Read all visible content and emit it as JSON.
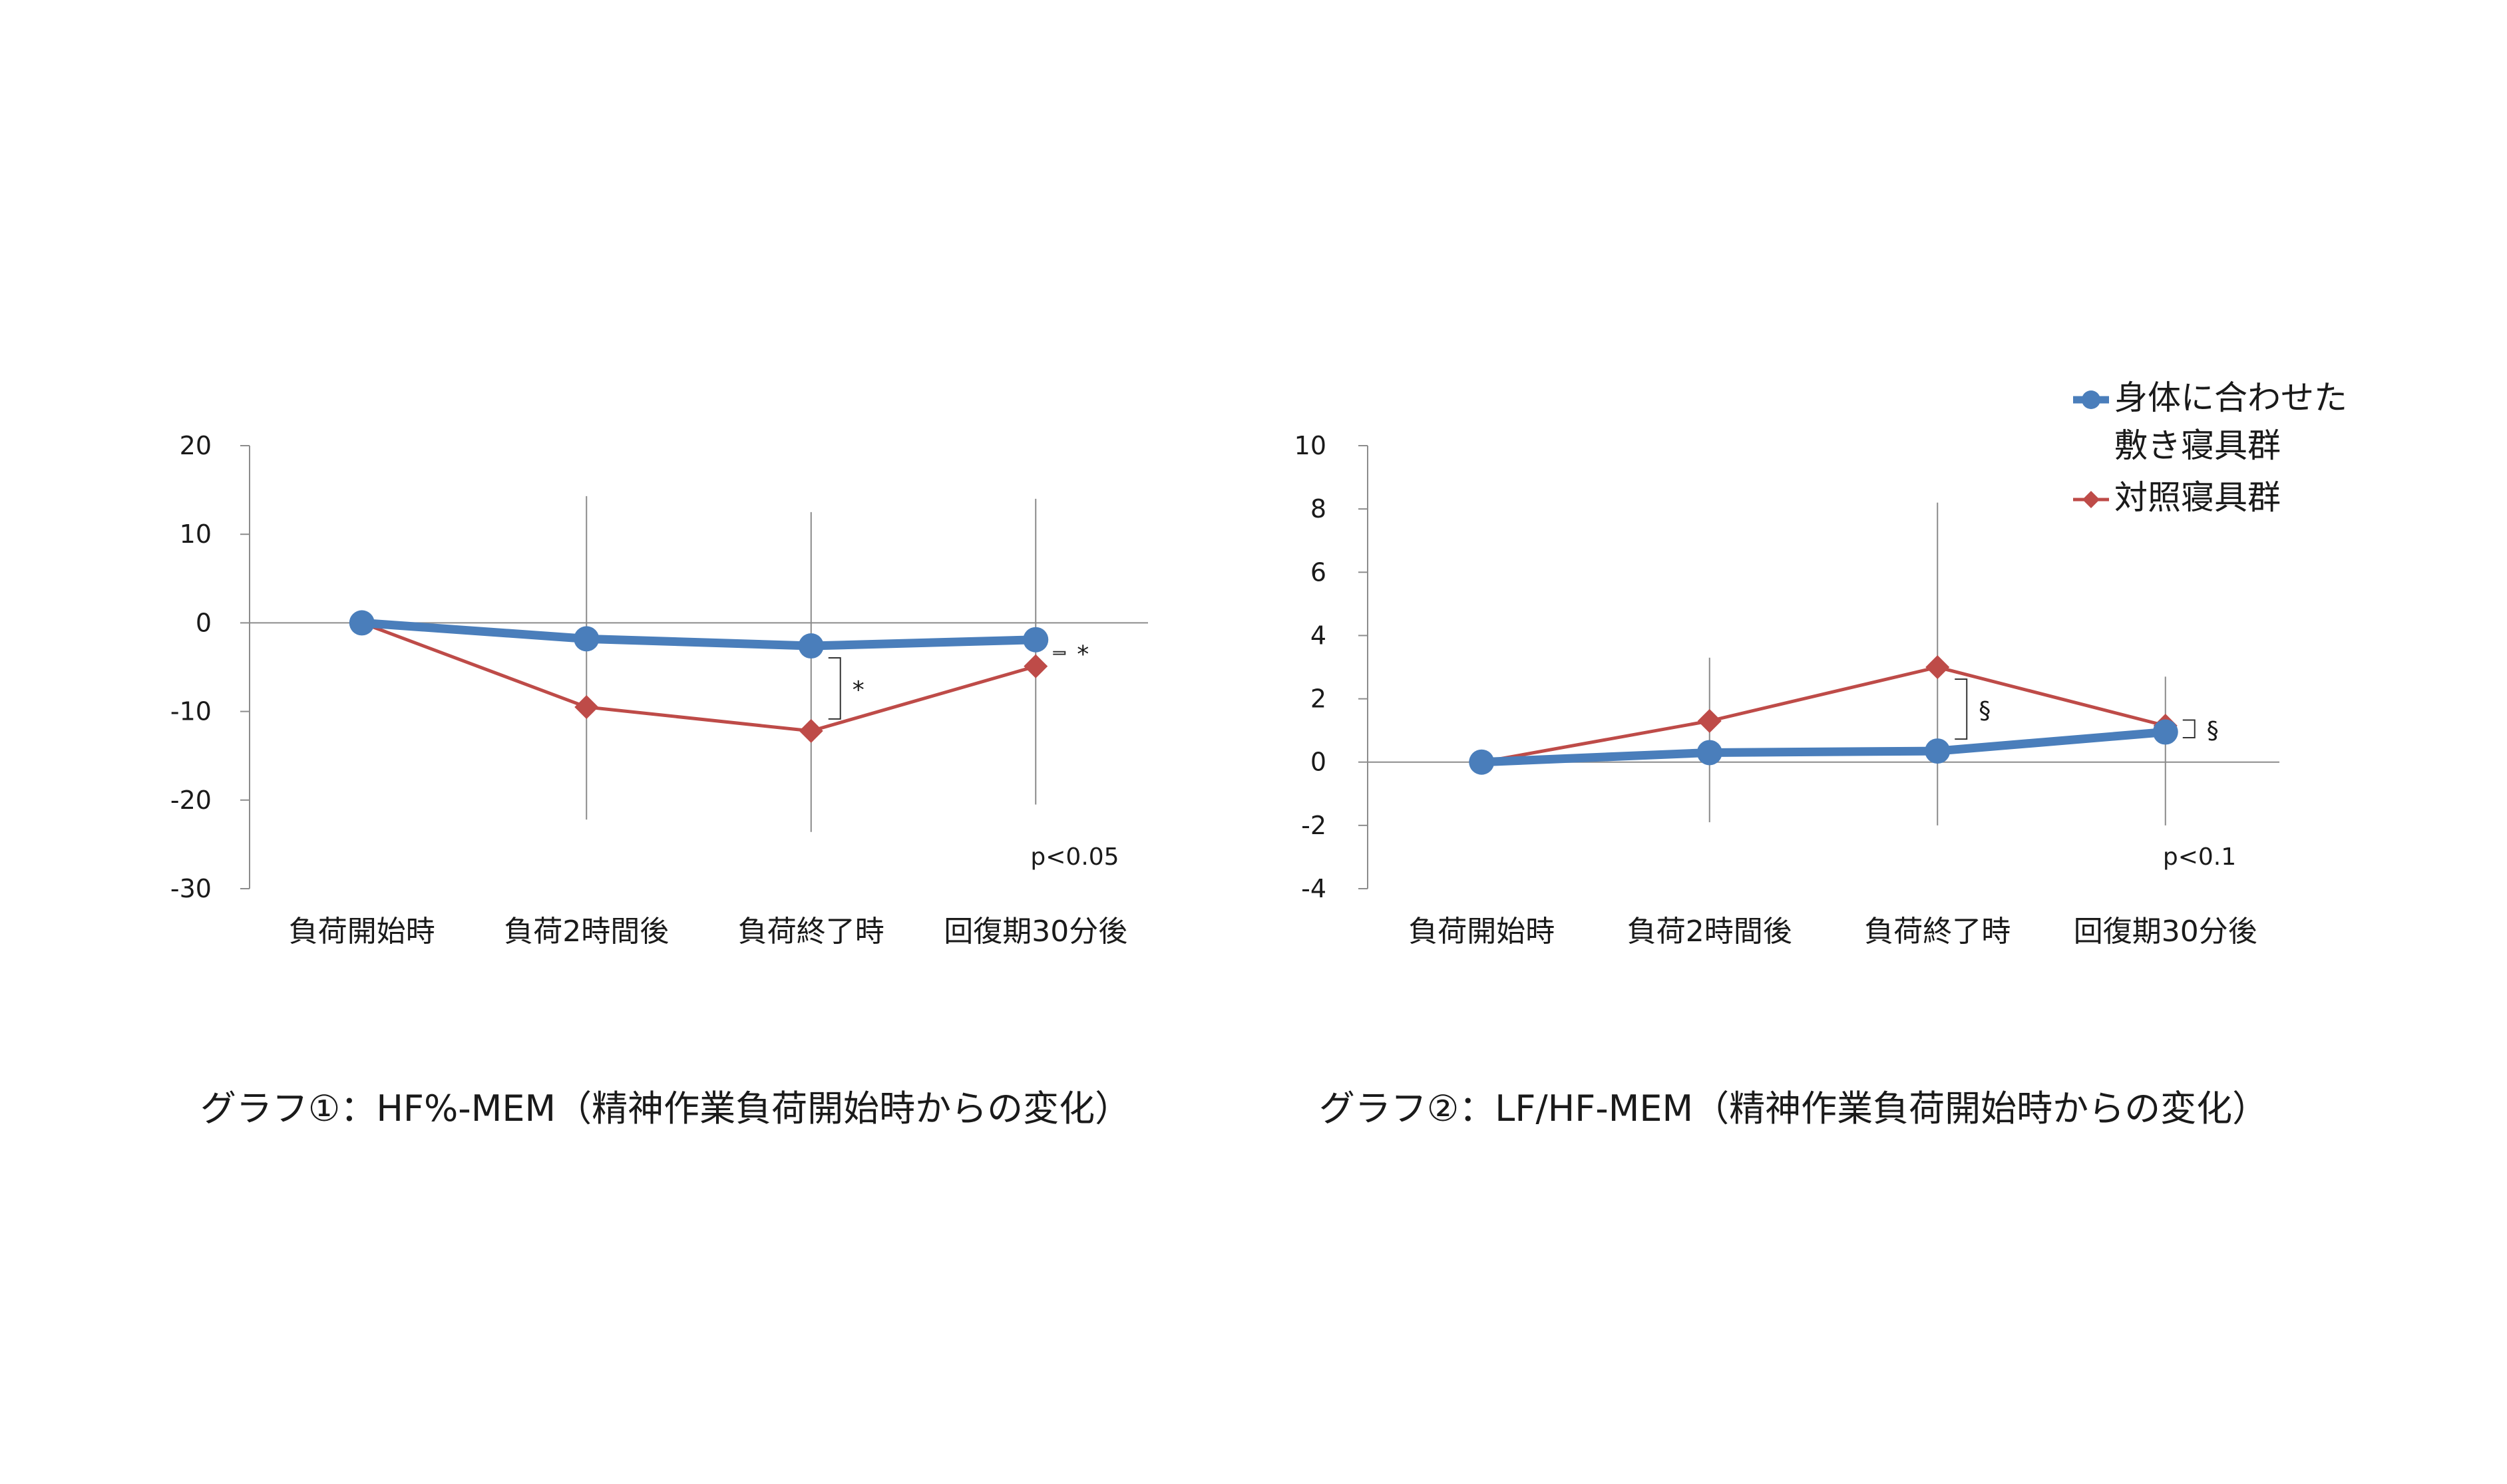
{
  "chart_data": [
    {
      "type": "line",
      "title": "",
      "xlabel": "",
      "ylabel": "",
      "caption": "グラフ①：HF%-MEM（精神作業負荷開始時からの変化）",
      "categories": [
        "負荷開始時",
        "負荷2時間後",
        "負荷終了時",
        "回復期30分後"
      ],
      "ylim": [
        -30,
        20
      ],
      "yticks": [
        20,
        10,
        0,
        -10,
        -20,
        -30
      ],
      "ytick_labels": [
        "20",
        "10",
        "0",
        "-10",
        "-20",
        "-30"
      ],
      "series": [
        {
          "key": "fitted",
          "color": "#4a7ebb",
          "marker": "circle",
          "values": [
            0,
            -1.8,
            -2.6,
            -1.9
          ],
          "err_lower": [
            null,
            null,
            null,
            null
          ],
          "err_upper": [
            null,
            null,
            null,
            null
          ]
        },
        {
          "key": "control",
          "color": "#be4b48",
          "marker": "diamond",
          "values": [
            0,
            -9.5,
            -12.2,
            -4.9
          ],
          "err_lower": [
            null,
            -22.2,
            -23.6,
            -20.5
          ],
          "err_upper": [
            null,
            14.3,
            12.5,
            14.0
          ]
        }
      ],
      "significance": [
        {
          "category_index": 2,
          "label": "*"
        },
        {
          "category_index": 3,
          "label": "*"
        }
      ],
      "note": "p<0.05"
    },
    {
      "type": "line",
      "title": "",
      "xlabel": "",
      "ylabel": "",
      "caption": "グラフ②：LF/HF-MEM（精神作業負荷開始時からの変化）",
      "categories": [
        "負荷開始時",
        "負荷2時間後",
        "負荷終了時",
        "回復期30分後"
      ],
      "ylim": [
        -4,
        10
      ],
      "yticks": [
        10,
        8,
        6,
        4,
        2,
        0,
        -2,
        -4
      ],
      "ytick_labels": [
        "10",
        "8",
        "6",
        "4",
        "2",
        "0",
        "-2",
        "-4"
      ],
      "series": [
        {
          "key": "fitted",
          "color": "#4a7ebb",
          "marker": "circle",
          "values": [
            0,
            0.3,
            0.35,
            0.95
          ],
          "err_lower": [
            null,
            null,
            null,
            null
          ],
          "err_upper": [
            null,
            null,
            null,
            null
          ]
        },
        {
          "key": "control",
          "color": "#be4b48",
          "marker": "diamond",
          "values": [
            0,
            1.3,
            3.0,
            1.15
          ],
          "err_lower": [
            null,
            -1.9,
            -2.0,
            -2.0
          ],
          "err_upper": [
            null,
            3.3,
            8.2,
            2.7
          ]
        }
      ],
      "significance": [
        {
          "category_index": 2,
          "label": "§"
        },
        {
          "category_index": 3,
          "label": "§"
        }
      ],
      "note": "p<0.1",
      "legend_position": "top-right",
      "legend": [
        {
          "series_key": "fitted",
          "lines": [
            "身体に合わせた",
            "敷き寝具群"
          ]
        },
        {
          "series_key": "control",
          "lines": [
            "対照寝具群"
          ]
        }
      ]
    }
  ]
}
